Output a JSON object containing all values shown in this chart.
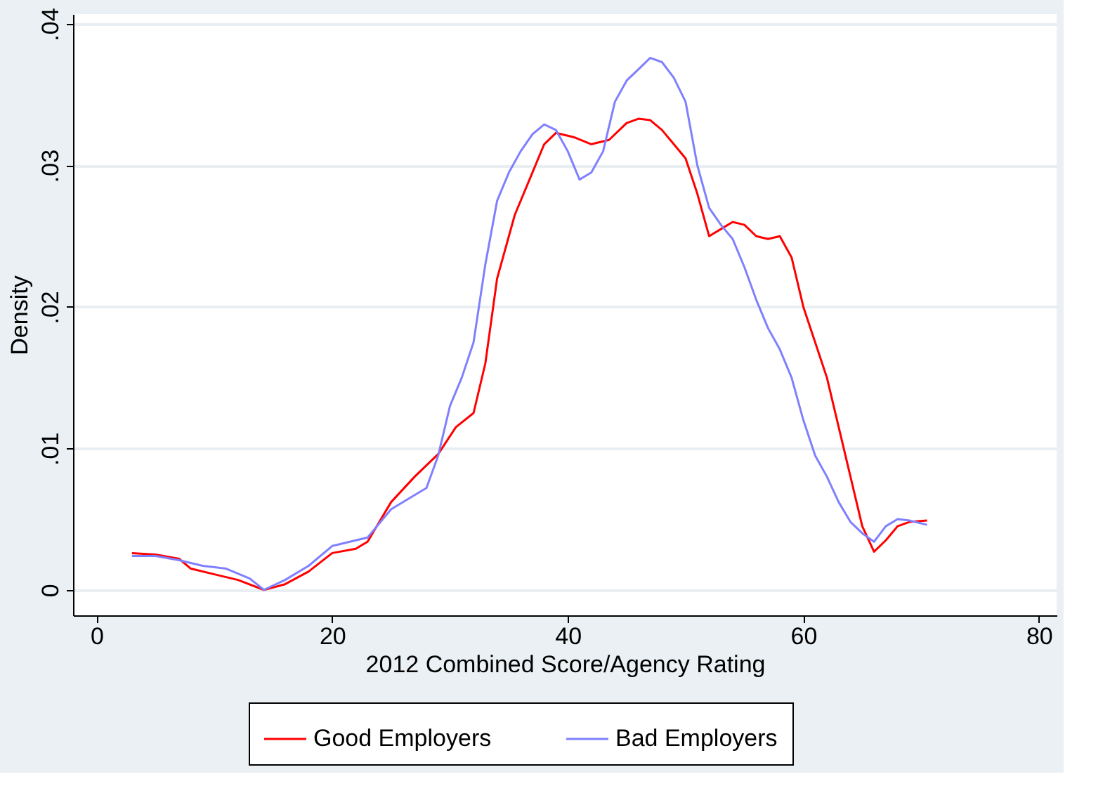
{
  "chart_data": {
    "type": "line",
    "xlabel": "2012 Combined Score/Agency Rating",
    "ylabel": "Density",
    "xlim": [
      -2,
      81.5
    ],
    "ylim": [
      -0.0018,
      0.0407
    ],
    "xticks": [
      0,
      20,
      40,
      60,
      80
    ],
    "yticks": [
      0,
      {
        "value": 0.01,
        "label": ".01"
      },
      {
        "value": 0.02,
        "label": ".02"
      },
      {
        "value": 0.03,
        "label": ".03"
      },
      {
        "value": 0.04,
        "label": ".04"
      }
    ],
    "grid": "y",
    "legend": "bottom",
    "line_style": "solid",
    "series": [
      {
        "name": "Good Employers",
        "color": "#ff0000",
        "x": [
          3,
          5,
          7,
          8,
          10,
          12,
          14.2,
          16,
          18,
          20,
          22,
          23,
          25,
          27,
          29,
          30.5,
          32,
          33,
          34,
          35.5,
          37,
          38,
          39,
          40.5,
          42,
          43.5,
          45,
          46,
          47,
          48,
          49,
          50,
          51,
          52,
          53,
          54,
          55,
          56,
          57,
          58,
          59,
          60,
          61,
          62,
          63,
          64,
          65,
          66,
          67,
          68,
          69,
          70.5
        ],
        "values": [
          0.0026,
          0.0025,
          0.0022,
          0.0015,
          0.0011,
          0.0007,
          0.0,
          0.0004,
          0.0013,
          0.0026,
          0.0029,
          0.0034,
          0.0062,
          0.008,
          0.0096,
          0.0115,
          0.0125,
          0.016,
          0.022,
          0.0265,
          0.0295,
          0.0315,
          0.0323,
          0.032,
          0.0315,
          0.0318,
          0.033,
          0.0333,
          0.0332,
          0.0325,
          0.0315,
          0.0305,
          0.028,
          0.025,
          0.0255,
          0.026,
          0.0258,
          0.025,
          0.0248,
          0.025,
          0.0235,
          0.02,
          0.0175,
          0.015,
          0.0115,
          0.008,
          0.0045,
          0.0027,
          0.0035,
          0.0045,
          0.0048,
          0.0049
        ]
      },
      {
        "name": "Bad Employers",
        "color": "#8080ff",
        "x": [
          3,
          5,
          7,
          9,
          11,
          13,
          14.2,
          16,
          18,
          20,
          22,
          23,
          25,
          27,
          28,
          29,
          30,
          31,
          32,
          33,
          34,
          35,
          36,
          37,
          38,
          39,
          40,
          41,
          42,
          43,
          44,
          45,
          46,
          47,
          48,
          49,
          50,
          51,
          52,
          53,
          54,
          55,
          56,
          57,
          58,
          59,
          60,
          61,
          62,
          63,
          64,
          65,
          66,
          67,
          68,
          69,
          70.5
        ],
        "values": [
          0.0024,
          0.0024,
          0.0021,
          0.0017,
          0.0015,
          0.0008,
          0.0,
          0.0007,
          0.0017,
          0.0031,
          0.0035,
          0.0037,
          0.0057,
          0.0067,
          0.0072,
          0.0095,
          0.013,
          0.015,
          0.0175,
          0.023,
          0.0275,
          0.0295,
          0.031,
          0.0322,
          0.0329,
          0.0325,
          0.031,
          0.029,
          0.0295,
          0.031,
          0.0345,
          0.036,
          0.0368,
          0.0376,
          0.0373,
          0.0362,
          0.0345,
          0.03,
          0.027,
          0.0258,
          0.0248,
          0.0228,
          0.0205,
          0.0185,
          0.017,
          0.015,
          0.012,
          0.0095,
          0.008,
          0.0062,
          0.0048,
          0.004,
          0.0034,
          0.0045,
          0.005,
          0.0049,
          0.0046
        ]
      }
    ]
  }
}
